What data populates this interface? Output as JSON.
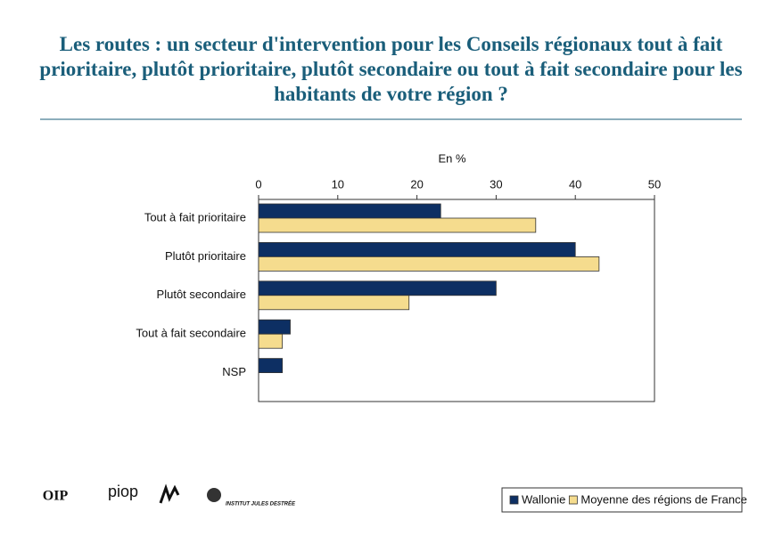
{
  "chart_data": {
    "type": "hbar",
    "title": "Les routes : un secteur d'intervention pour les Conseils régionaux tout à fait prioritaire, plutôt prioritaire, plutôt secondaire ou tout à fait secondaire pour les habitants de votre région ?",
    "x_label": "En %",
    "categories": [
      "Tout à fait prioritaire",
      "Plutôt prioritaire",
      "Plutôt secondaire",
      "Tout à fait secondaire",
      "NSP"
    ],
    "series": [
      {
        "name": "Wallonie",
        "color": "#0d2f63",
        "values": [
          23,
          40,
          30,
          4,
          3
        ]
      },
      {
        "name": "Moyenne des régions de France",
        "color": "#f5dc8e",
        "values": [
          35,
          43,
          19,
          3,
          0
        ]
      }
    ],
    "xlim": [
      0,
      50
    ],
    "xticks": [
      0,
      10,
      20,
      30,
      40,
      50
    ],
    "legend": "bottom-right",
    "logos": [
      "OIP",
      "piop",
      "INSTITUT JULES DESTRÉE"
    ]
  }
}
